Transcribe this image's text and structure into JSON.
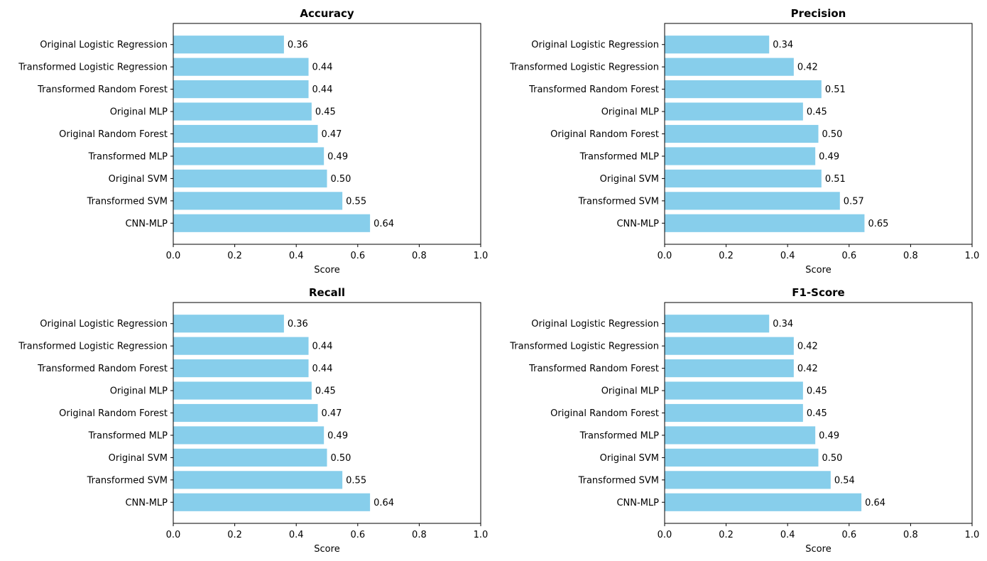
{
  "colors": {
    "bar": "#87ceeb",
    "axis": "#000000",
    "background": "#ffffff"
  },
  "chart_data": [
    {
      "type": "bar",
      "orientation": "horizontal",
      "title": "Accuracy",
      "xlabel": "Score",
      "ylabel": "",
      "xlim": [
        0,
        1
      ],
      "xticks": [
        "0.0",
        "0.2",
        "0.4",
        "0.6",
        "0.8",
        "1.0"
      ],
      "categories": [
        "Original Logistic Regression",
        "Transformed Logistic Regression",
        "Transformed Random Forest",
        "Original MLP",
        "Original Random Forest",
        "Transformed MLP",
        "Original SVM",
        "Transformed SVM",
        "CNN-MLP"
      ],
      "values": [
        0.36,
        0.44,
        0.44,
        0.45,
        0.47,
        0.49,
        0.5,
        0.55,
        0.64
      ],
      "value_labels": [
        "0.36",
        "0.44",
        "0.44",
        "0.45",
        "0.47",
        "0.49",
        "0.50",
        "0.55",
        "0.64"
      ],
      "grid": false
    },
    {
      "type": "bar",
      "orientation": "horizontal",
      "title": "Precision",
      "xlabel": "Score",
      "ylabel": "",
      "xlim": [
        0,
        1
      ],
      "xticks": [
        "0.0",
        "0.2",
        "0.4",
        "0.6",
        "0.8",
        "1.0"
      ],
      "categories": [
        "Original Logistic Regression",
        "Transformed Logistic Regression",
        "Transformed Random Forest",
        "Original MLP",
        "Original Random Forest",
        "Transformed MLP",
        "Original SVM",
        "Transformed SVM",
        "CNN-MLP"
      ],
      "values": [
        0.34,
        0.42,
        0.51,
        0.45,
        0.5,
        0.49,
        0.51,
        0.57,
        0.65
      ],
      "value_labels": [
        "0.34",
        "0.42",
        "0.51",
        "0.45",
        "0.50",
        "0.49",
        "0.51",
        "0.57",
        "0.65"
      ],
      "grid": false
    },
    {
      "type": "bar",
      "orientation": "horizontal",
      "title": "Recall",
      "xlabel": "Score",
      "ylabel": "",
      "xlim": [
        0,
        1
      ],
      "xticks": [
        "0.0",
        "0.2",
        "0.4",
        "0.6",
        "0.8",
        "1.0"
      ],
      "categories": [
        "Original Logistic Regression",
        "Transformed Logistic Regression",
        "Transformed Random Forest",
        "Original MLP",
        "Original Random Forest",
        "Transformed MLP",
        "Original SVM",
        "Transformed SVM",
        "CNN-MLP"
      ],
      "values": [
        0.36,
        0.44,
        0.44,
        0.45,
        0.47,
        0.49,
        0.5,
        0.55,
        0.64
      ],
      "value_labels": [
        "0.36",
        "0.44",
        "0.44",
        "0.45",
        "0.47",
        "0.49",
        "0.50",
        "0.55",
        "0.64"
      ],
      "grid": false
    },
    {
      "type": "bar",
      "orientation": "horizontal",
      "title": "F1-Score",
      "xlabel": "Score",
      "ylabel": "",
      "xlim": [
        0,
        1
      ],
      "xticks": [
        "0.0",
        "0.2",
        "0.4",
        "0.6",
        "0.8",
        "1.0"
      ],
      "categories": [
        "Original Logistic Regression",
        "Transformed Logistic Regression",
        "Transformed Random Forest",
        "Original MLP",
        "Original Random Forest",
        "Transformed MLP",
        "Original SVM",
        "Transformed SVM",
        "CNN-MLP"
      ],
      "values": [
        0.34,
        0.42,
        0.42,
        0.45,
        0.45,
        0.49,
        0.5,
        0.54,
        0.64
      ],
      "value_labels": [
        "0.34",
        "0.42",
        "0.42",
        "0.45",
        "0.45",
        "0.49",
        "0.50",
        "0.54",
        "0.64"
      ],
      "grid": false
    }
  ]
}
